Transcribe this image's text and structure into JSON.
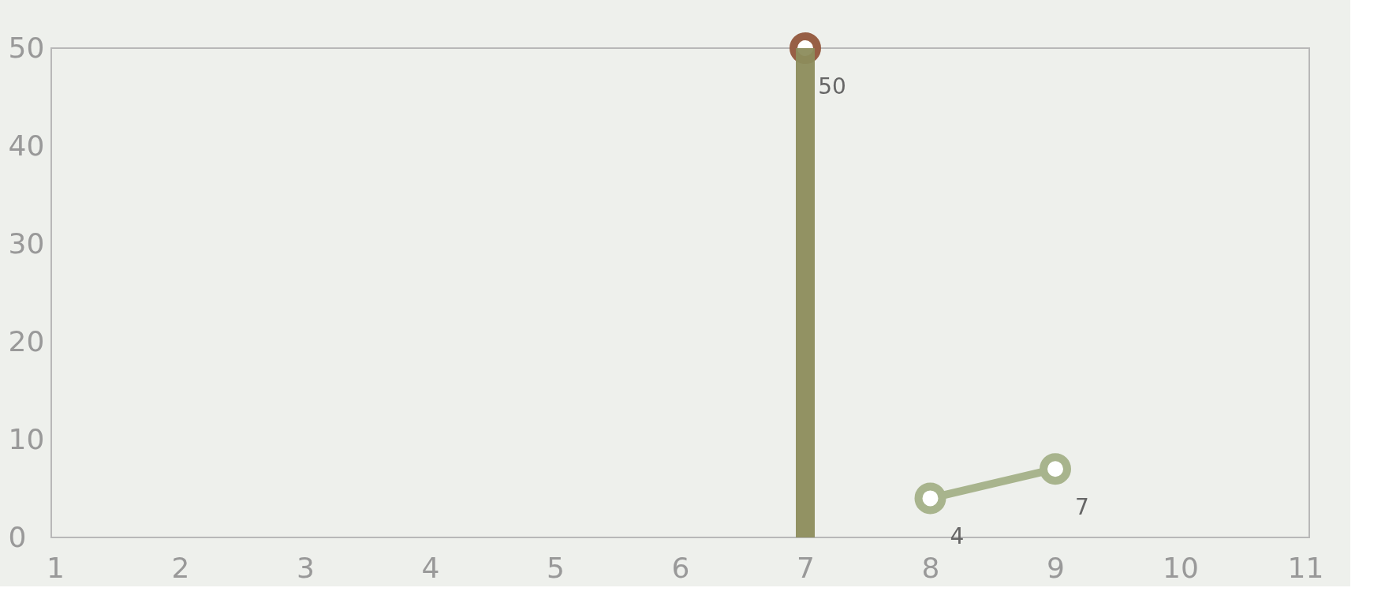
{
  "chart_data": {
    "type": "line",
    "xlim": [
      1,
      11
    ],
    "xticks": [
      1,
      2,
      3,
      4,
      5,
      6,
      7,
      8,
      9,
      10,
      11
    ],
    "ylim": [
      0,
      50
    ],
    "yticks": [
      0,
      10,
      20,
      30,
      40,
      50
    ],
    "grid": false,
    "legend": false,
    "marker": "circle",
    "line_style": "solid",
    "series": [
      {
        "type": "bar",
        "x": [
          7
        ],
        "values": [
          50
        ],
        "color": "#8c8c5c"
      },
      {
        "x": [
          7
        ],
        "values": [
          50
        ],
        "color": "#975f45",
        "value_labels": [
          "50"
        ]
      },
      {
        "x": [
          8,
          9
        ],
        "values": [
          4,
          7
        ],
        "color": "#a8b48d",
        "value_labels": [
          "4",
          "7"
        ]
      }
    ]
  }
}
